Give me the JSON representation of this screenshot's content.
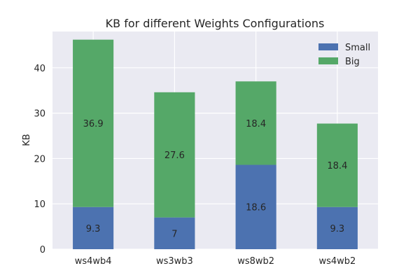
{
  "chart_data": {
    "type": "bar",
    "stacked": true,
    "title": "KB for different Weights Configurations",
    "xlabel": "",
    "ylabel": "KB",
    "categories": [
      "ws4wb4",
      "ws3wb3",
      "ws8wb2",
      "ws4wb2"
    ],
    "series": [
      {
        "name": "Small",
        "values": [
          9.3,
          7,
          18.6,
          9.3
        ],
        "labels": [
          "9.3",
          "7",
          "18.6",
          "9.3"
        ],
        "color": "#4c72b0"
      },
      {
        "name": "Big",
        "values": [
          36.9,
          27.6,
          18.4,
          18.4
        ],
        "labels": [
          "36.9",
          "27.6",
          "18.4",
          "18.4"
        ],
        "color": "#55a868"
      }
    ],
    "ylim": [
      0,
      48
    ],
    "yticks": [
      0,
      10,
      20,
      30,
      40
    ],
    "grid": true,
    "legend_position": "top-right",
    "background": "#eaeaf2",
    "grid_color": "#ffffff"
  }
}
